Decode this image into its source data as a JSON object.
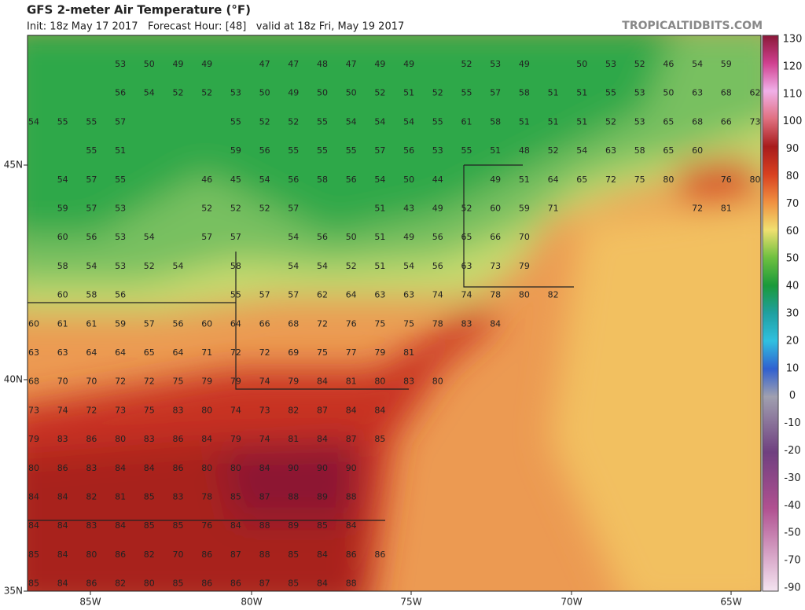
{
  "header": {
    "title": "GFS 2-meter Air Temperature (°F)",
    "subtitle": "Init: 18z May 17 2017   Forecast Hour: [48]   valid at 18z Fri, May 19 2017",
    "site": "TROPICALTIDBITS.COM"
  },
  "axes": {
    "longitude": [
      "85W",
      "80W",
      "75W",
      "70W",
      "65W"
    ],
    "latitude": [
      "45N",
      "40N",
      "35N"
    ]
  },
  "colorbar": {
    "labels": [
      "130",
      "120",
      "110",
      "100",
      "90",
      "80",
      "70",
      "60",
      "50",
      "40",
      "30",
      "20",
      "10",
      "0",
      "-10",
      "-20",
      "-30",
      "-40",
      "-50",
      "-70",
      "-90"
    ]
  },
  "stations": [
    [
      null,
      null,
      null,
      53,
      50,
      49,
      49,
      null,
      47,
      47,
      48,
      47,
      49,
      49,
      null,
      52,
      53,
      49,
      null,
      50,
      53,
      52,
      46,
      54,
      59
    ],
    [
      null,
      null,
      null,
      56,
      54,
      52,
      52,
      53,
      50,
      49,
      50,
      50,
      52,
      51,
      52,
      55,
      57,
      58,
      51,
      51,
      55,
      53,
      50,
      63,
      68,
      62
    ],
    [
      54,
      55,
      55,
      57,
      null,
      null,
      null,
      55,
      52,
      52,
      55,
      54,
      54,
      54,
      55,
      61,
      58,
      51,
      51,
      51,
      52,
      53,
      65,
      68,
      66,
      73
    ],
    [
      null,
      null,
      55,
      51,
      null,
      null,
      null,
      59,
      56,
      55,
      55,
      55,
      57,
      56,
      53,
      55,
      51,
      48,
      52,
      54,
      63,
      58,
      65,
      60
    ],
    [
      null,
      54,
      57,
      55,
      null,
      null,
      46,
      45,
      54,
      56,
      58,
      56,
      54,
      50,
      44,
      null,
      49,
      51,
      64,
      65,
      72,
      75,
      80,
      null,
      76,
      80
    ],
    [
      null,
      59,
      57,
      53,
      null,
      null,
      52,
      52,
      52,
      57,
      null,
      null,
      51,
      43,
      49,
      52,
      60,
      59,
      71,
      null,
      null,
      null,
      null,
      72,
      81
    ],
    [
      null,
      60,
      56,
      53,
      54,
      null,
      57,
      57,
      null,
      54,
      56,
      50,
      51,
      49,
      56,
      65,
      66,
      70
    ],
    [
      null,
      58,
      54,
      53,
      52,
      54,
      null,
      58,
      null,
      54,
      54,
      52,
      51,
      54,
      56,
      63,
      73,
      79
    ],
    [
      null,
      60,
      58,
      56,
      null,
      null,
      null,
      55,
      57,
      57,
      62,
      64,
      63,
      63,
      74,
      74,
      78,
      80,
      82
    ],
    [
      60,
      61,
      61,
      59,
      57,
      56,
      60,
      64,
      66,
      68,
      72,
      76,
      75,
      75,
      78,
      83,
      84
    ],
    [
      63,
      63,
      64,
      64,
      65,
      64,
      71,
      72,
      72,
      69,
      75,
      77,
      79,
      81
    ],
    [
      68,
      70,
      70,
      72,
      72,
      75,
      79,
      79,
      74,
      79,
      84,
      81,
      80,
      83,
      80
    ],
    [
      73,
      74,
      72,
      73,
      75,
      83,
      80,
      74,
      73,
      82,
      87,
      84,
      84
    ],
    [
      79,
      83,
      86,
      80,
      83,
      86,
      84,
      79,
      74,
      81,
      84,
      87,
      85
    ],
    [
      80,
      86,
      83,
      84,
      84,
      86,
      80,
      80,
      84,
      90,
      90,
      90
    ],
    [
      84,
      84,
      82,
      81,
      85,
      83,
      78,
      85,
      87,
      88,
      89,
      88
    ],
    [
      84,
      84,
      83,
      84,
      85,
      85,
      76,
      84,
      88,
      89,
      85,
      84
    ],
    [
      85,
      84,
      80,
      86,
      82,
      70,
      86,
      87,
      88,
      85,
      84,
      86,
      86
    ],
    [
      85,
      84,
      86,
      82,
      80,
      85,
      86,
      86,
      87,
      85,
      84,
      88
    ]
  ]
}
